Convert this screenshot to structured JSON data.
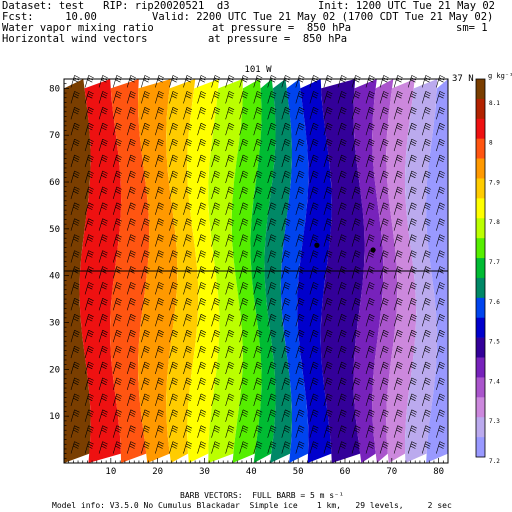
{
  "header": {
    "dataset_line": "Dataset: test   RIP: rip20020521  d3",
    "init_line": "Init: 1200 UTC Tue 21 May 02",
    "fcst_line": "Fcst:     10.00",
    "valid_line": "Valid: 2200 UTC Tue 21 May 02 (1700 CDT Tue 21 May 02)",
    "field1_line": "Water vapor mixing ratio",
    "field1_pressure": "at pressure =  850 hPa",
    "field1_sm": "sm= 1",
    "field2_line": "Horizontal wind vectors",
    "field2_pressure": "at pressure =  850 hPa"
  },
  "footer": {
    "barb_line": "BARB VECTORS:  FULL BARB = 5 m s⁻¹",
    "model_line": "Model info: V3.5.0 No Cumulus Blackadar  Simple ice    1 km,   29 levels,     2 sec"
  },
  "chart_data": {
    "type": "heatmap",
    "title": "",
    "xlabel": "",
    "ylabel": "",
    "xlim": [
      0,
      82
    ],
    "ylim": [
      0,
      82
    ],
    "x_ticks": [
      10,
      20,
      30,
      40,
      50,
      60,
      70,
      80
    ],
    "y_ticks": [
      10,
      20,
      30,
      40,
      50,
      60,
      70,
      80
    ],
    "top_labels": {
      "left": "101 W",
      "right": "37 N"
    },
    "cross_section_line_y": 41,
    "colorbar": {
      "unit_label": "g kg⁻¹",
      "labels": [
        "8.1",
        "8",
        "7.9",
        "7.8",
        "7.7",
        "7.6",
        "7.5",
        "7.4",
        "7.3",
        "7.2"
      ],
      "colors": [
        "#7a3e00",
        "#b22200",
        "#ee1111",
        "#ff5511",
        "#ff9900",
        "#ffcc00",
        "#ffff00",
        "#bbff00",
        "#55ee00",
        "#00bb33",
        "#008866",
        "#0044ee",
        "#0000cc",
        "#330099",
        "#7722bb",
        "#aa55cc",
        "#cc88dd",
        "#bbaaee",
        "#9999ff"
      ]
    },
    "band_boundaries_x": [
      1.5,
      4.5,
      11,
      17,
      23,
      27.5,
      32,
      37,
      41,
      44,
      47.5,
      51,
      56,
      63,
      67,
      70,
      74,
      78.5,
      82
    ],
    "band_colors": [
      "#7a3e00",
      "#ee1111",
      "#ff5511",
      "#ff9900",
      "#ffcc00",
      "#ffff00",
      "#bbff00",
      "#55ee00",
      "#00bb33",
      "#008866",
      "#0044ee",
      "#0000cc",
      "#330099",
      "#7722bb",
      "#aa55cc",
      "#cc88dd",
      "#bbaaee",
      "#9999ff"
    ],
    "markers": [
      {
        "x": 54,
        "y": 46.5
      },
      {
        "x": 66,
        "y": 45.5
      }
    ],
    "barb_grid": {
      "x_start": 1.5,
      "x_step": 3,
      "y_start": 2,
      "y_step": 3.4
    }
  }
}
